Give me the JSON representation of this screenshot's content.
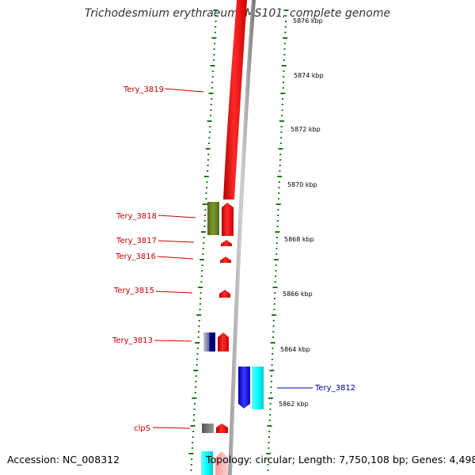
{
  "title": "Trichodesmium erythraeum IMS101, complete genome",
  "footer": {
    "accession": "Accession: NC_008312",
    "topology": "Topology: circular; Length: 7,750,108 bp; Genes: 4,498"
  },
  "colors": {
    "forward_gene": "#ff0000",
    "reverse_gene": "#0000ff",
    "gene_cluster_green": "#6b8e23",
    "gene_cluster_cyan": "#00ffff",
    "gene_cluster_navy": "#000080",
    "gene_cluster_gray": "#808080",
    "tick": "#1a7a1a",
    "label_red": "#cc0000",
    "label_blue": "#000099"
  },
  "scale_ticks": [
    {
      "label": "5876 kbp"
    },
    {
      "label": "5874 kbp"
    },
    {
      "label": "5872 kbp"
    },
    {
      "label": "5870 kbp"
    },
    {
      "label": "5868 kbp"
    },
    {
      "label": "5866 kbp"
    },
    {
      "label": "5864 kbp"
    },
    {
      "label": "5862 kbp"
    }
  ],
  "gene_labels": [
    {
      "name": "Tery_3819",
      "strand": "forward"
    },
    {
      "name": "Tery_3818",
      "strand": "forward"
    },
    {
      "name": "Tery_3817",
      "strand": "forward"
    },
    {
      "name": "Tery_3816",
      "strand": "forward"
    },
    {
      "name": "Tery_3815",
      "strand": "forward"
    },
    {
      "name": "Tery_3813",
      "strand": "forward"
    },
    {
      "name": "clpS",
      "strand": "forward"
    },
    {
      "name": "Tery_3812",
      "strand": "reverse"
    }
  ]
}
